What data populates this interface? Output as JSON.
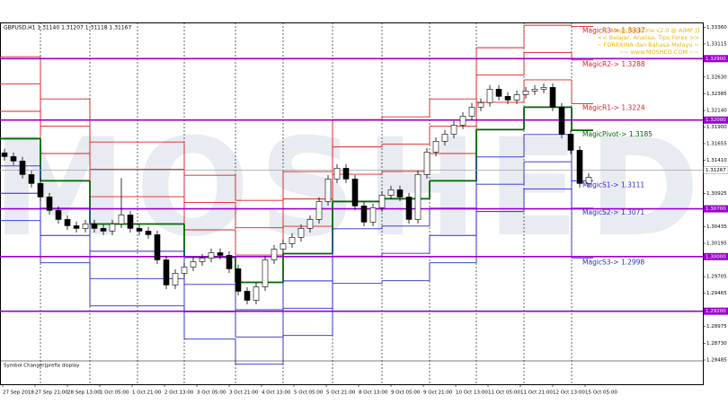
{
  "chart_data": {
    "type": "candlestick",
    "header": "GBPUSD,H1  1.31140 1.31207 1.31118 1.31167",
    "watermark": "MOSHED",
    "footer": "Symbol Changer|prefix display",
    "info_lines": [
      "[[ MagicPivotLine v2.0 @ AIMP ]]",
      "<< Belajar, Analisa, Tips Forex >>",
      "~ FOREXINA dan Bahasa Melayu ~",
      "~~ www.MOSHED.COM ~~"
    ],
    "ylim": [
      1.2813,
      1.3343
    ],
    "yticks": [
      {
        "value": 1.3336,
        "label": "1.33360"
      },
      {
        "value": 1.33115,
        "label": "1.33115"
      },
      {
        "value": 1.3263,
        "label": "1.32630"
      },
      {
        "value": 1.32385,
        "label": "1.32385"
      },
      {
        "value": 1.3214,
        "label": "1.32140"
      },
      {
        "value": 1.319,
        "label": "1.31900"
      },
      {
        "value": 1.31655,
        "label": "1.31655"
      },
      {
        "value": 1.3141,
        "label": "1.31410"
      },
      {
        "value": 1.30925,
        "label": "1.30925"
      },
      {
        "value": 1.30435,
        "label": "1.30435"
      },
      {
        "value": 1.30195,
        "label": "1.30195"
      },
      {
        "value": 1.29705,
        "label": "1.29705"
      },
      {
        "value": 1.29465,
        "label": "1.29465"
      },
      {
        "value": 1.28975,
        "label": "1.28975"
      },
      {
        "value": 1.2873,
        "label": "1.28730"
      },
      {
        "value": 1.28485,
        "label": "1.28485"
      }
    ],
    "time_labels": [
      "27 Sep 2018",
      "27 Sep 21:00",
      "28 Sep 13:00",
      "1 Oct 05:00",
      "1 Oct 21:00",
      "2 Oct 13:00",
      "3 Oct 05:00",
      "3 Oct 21:00",
      "4 Oct 13:00",
      "5 Oct 05:00",
      "5 Oct 21:00",
      "8 Oct 13:00",
      "9 Oct 05:00",
      "9 Oct 21:00",
      "10 Oct 13:00",
      "11 Oct 05:00",
      "11 Oct 21:00",
      "12 Oct 13:00",
      "15 Oct 05:00"
    ],
    "open": [
      1.3152,
      1.31465,
      1.314,
      1.31202,
      1.31071,
      1.30873,
      1.30676,
      1.30544,
      1.30452,
      1.30413,
      1.30478,
      1.30413,
      1.30373,
      1.30478,
      1.3061,
      1.30413,
      1.30373,
      1.30321,
      1.29952,
      1.29584,
      1.29755,
      1.29847,
      1.29926,
      1.29978,
      1.30057,
      1.30018,
      1.29821,
      1.29492,
      1.2936,
      1.29557,
      1.29952,
      1.3011,
      1.30189,
      1.30281,
      1.30413,
      1.30544,
      1.30807,
      1.31136,
      1.31294,
      1.31136,
      1.30742,
      1.30505,
      1.30715,
      1.30899,
      1.30978,
      1.30873,
      1.30544,
      1.31202,
      1.31531,
      1.31689,
      1.31794,
      1.31926,
      1.32057,
      1.32189,
      1.32255,
      1.32452,
      1.32347,
      1.32294,
      1.32373,
      1.32426,
      1.32452,
      1.32478,
      1.32189,
      1.31794,
      1.31557,
      1.31071
    ],
    "high": [
      1.3158,
      1.31525,
      1.3146,
      1.31262,
      1.31131,
      1.30933,
      1.30736,
      1.30604,
      1.30512,
      1.30538,
      1.30538,
      1.30473,
      1.30538,
      1.3115,
      1.3067,
      1.30473,
      1.30433,
      1.30381,
      1.30012,
      1.29815,
      1.29907,
      1.29986,
      1.30038,
      1.30117,
      1.30117,
      1.30078,
      1.29881,
      1.29552,
      1.29617,
      1.30012,
      1.3017,
      1.30249,
      1.30341,
      1.30473,
      1.30604,
      1.30867,
      1.31196,
      1.31354,
      1.31354,
      1.31196,
      1.30802,
      1.30775,
      1.30959,
      1.31038,
      1.31038,
      1.30933,
      1.31262,
      1.31591,
      1.31749,
      1.31854,
      1.31986,
      1.32117,
      1.32249,
      1.32315,
      1.32512,
      1.32512,
      1.32407,
      1.32433,
      1.32486,
      1.32512,
      1.32538,
      1.32538,
      1.32249,
      1.31854,
      1.31617,
      1.31223
    ],
    "low": [
      1.31405,
      1.3134,
      1.31142,
      1.31011,
      1.30813,
      1.30616,
      1.30484,
      1.30392,
      1.30353,
      1.30353,
      1.30353,
      1.30313,
      1.30313,
      1.30418,
      1.30353,
      1.30313,
      1.30261,
      1.29892,
      1.29524,
      1.29524,
      1.29695,
      1.29787,
      1.29866,
      1.29918,
      1.29958,
      1.29761,
      1.29432,
      1.293,
      1.293,
      1.29497,
      1.29892,
      1.3005,
      1.30129,
      1.30221,
      1.30353,
      1.30484,
      1.30747,
      1.31076,
      1.31076,
      1.30682,
      1.30445,
      1.30445,
      1.30655,
      1.30839,
      1.30813,
      1.30484,
      1.30484,
      1.31142,
      1.31471,
      1.31629,
      1.31734,
      1.31866,
      1.31997,
      1.32129,
      1.32195,
      1.32287,
      1.32234,
      1.32234,
      1.32313,
      1.32366,
      1.32392,
      1.32129,
      1.31734,
      1.31497,
      1.31011,
      1.31011
    ],
    "close": [
      1.31465,
      1.314,
      1.31202,
      1.31071,
      1.30873,
      1.30676,
      1.30544,
      1.30452,
      1.30413,
      1.30478,
      1.30413,
      1.30373,
      1.30478,
      1.3061,
      1.30413,
      1.30373,
      1.30321,
      1.29952,
      1.29584,
      1.29755,
      1.29847,
      1.29926,
      1.29978,
      1.30057,
      1.30018,
      1.29821,
      1.29492,
      1.2936,
      1.29557,
      1.29952,
      1.3011,
      1.30189,
      1.30281,
      1.30413,
      1.30544,
      1.30807,
      1.31136,
      1.31294,
      1.31136,
      1.30742,
      1.30505,
      1.30715,
      1.30899,
      1.30978,
      1.30873,
      1.30544,
      1.31202,
      1.31531,
      1.31689,
      1.31794,
      1.31926,
      1.32057,
      1.32189,
      1.32255,
      1.32452,
      1.32347,
      1.32294,
      1.32373,
      1.32426,
      1.32452,
      1.32478,
      1.32189,
      1.31794,
      1.31557,
      1.31071,
      1.31163
    ],
    "pivot_days": [
      {
        "pivot": 1.31728,
        "r1": 1.32128,
        "r2": 1.32528,
        "r3": 1.32928,
        "s1": 1.31328,
        "s2": 1.30928,
        "s3": 1.30528
      },
      {
        "pivot": 1.3111,
        "r1": 1.3151,
        "r2": 1.3191,
        "r3": 1.3231,
        "s1": 1.3071,
        "s2": 1.3031,
        "s3": 1.2991
      },
      {
        "pivot": 1.30478,
        "r1": 1.30878,
        "r2": 1.31278,
        "r3": 1.31678,
        "s1": 1.30078,
        "s2": 1.29678,
        "s3": 1.29278
      },
      {
        "pivot": 1.30478,
        "r1": 1.30878,
        "r2": 1.31278,
        "r3": 1.31678,
        "s1": 1.30078,
        "s2": 1.29678,
        "s3": 1.29278
      },
      {
        "pivot": 1.29992,
        "r1": 1.30392,
        "r2": 1.30792,
        "r3": 1.31192,
        "s1": 1.29592,
        "s2": 1.29192,
        "s3": 1.28792
      },
      {
        "pivot": 1.29623,
        "r1": 1.30023,
        "r2": 1.30423,
        "r3": 1.30823,
        "s1": 1.29223,
        "s2": 1.28823,
        "s3": 1.28423
      },
      {
        "pivot": 1.30044,
        "r1": 1.30444,
        "r2": 1.30844,
        "r3": 1.31244,
        "s1": 1.29644,
        "s2": 1.29244,
        "s3": 1.28844
      },
      {
        "pivot": 1.30807,
        "r1": 1.31207,
        "r2": 1.31607,
        "r3": 1.32007,
        "s1": 1.30407,
        "s2": 1.30007,
        "s3": 1.29607
      },
      {
        "pivot": 1.30847,
        "r1": 1.31247,
        "r2": 1.31647,
        "r3": 1.32047,
        "s1": 1.30447,
        "s2": 1.30047,
        "s3": 1.29647
      },
      {
        "pivot": 1.3111,
        "r1": 1.3151,
        "r2": 1.3191,
        "r3": 1.3231,
        "s1": 1.3071,
        "s2": 1.3031,
        "s3": 1.2991
      },
      {
        "pivot": 1.3186,
        "r1": 1.3226,
        "r2": 1.3266,
        "r3": 1.3306,
        "s1": 1.3146,
        "s2": 1.3106,
        "s3": 1.3066
      },
      {
        "pivot": 1.32189,
        "r1": 1.32589,
        "r2": 1.32989,
        "r3": 1.33389,
        "s1": 1.31789,
        "s2": 1.31389,
        "s3": 1.30989
      },
      {
        "pivot": 1.3185,
        "r1": 1.3224,
        "r2": 1.3288,
        "r3": 1.3337,
        "s1": 1.3111,
        "s2": 1.3071,
        "s3": 1.2998
      }
    ],
    "pivot_labels": {
      "r3": "MagicR3-> 1.3337",
      "r2": "MagicR2-> 1.3288",
      "r1": "MagicR1-> 1.3224",
      "pivot": "MagicPivot-> 1.3185",
      "s1": "MagicS1-> 1.3111",
      "s2": "MagicS2-> 1.3071",
      "s3": "MagicS3-> 1.2998"
    },
    "round_levels": [
      {
        "value": 1.329,
        "label": "1.32900"
      },
      {
        "value": 1.32,
        "label": "1.32000"
      },
      {
        "value": 1.307,
        "label": "1.30700"
      },
      {
        "value": 1.3,
        "label": "1.30000"
      },
      {
        "value": 1.292,
        "label": "1.29200"
      }
    ],
    "current_price": {
      "value": 1.31267,
      "label": "1.31267"
    },
    "colors": {
      "pivot": "#006400",
      "resistance": "#e02020",
      "support": "#2828d0",
      "round": "#9900cc",
      "candle_up": "#ffffff",
      "candle_down": "#000000",
      "current": "#a0a0a0"
    }
  }
}
